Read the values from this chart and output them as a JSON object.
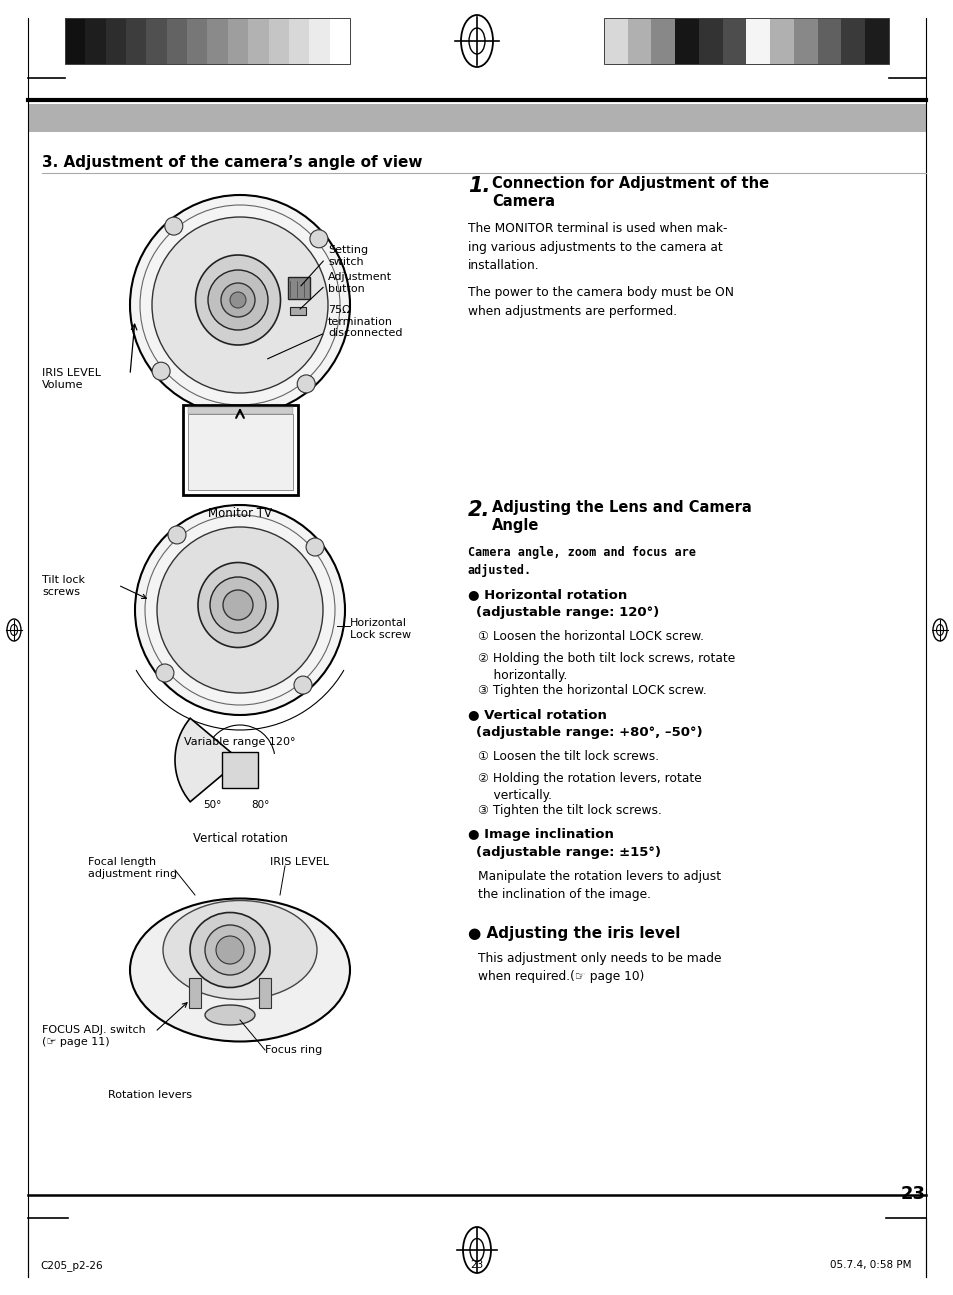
{
  "bg_color": "#ffffff",
  "colors_left": [
    "#111111",
    "#1e1e1e",
    "#2d2d2d",
    "#3d3d3d",
    "#505050",
    "#636363",
    "#777777",
    "#8a8a8a",
    "#9e9e9e",
    "#b2b2b2",
    "#c5c5c5",
    "#d8d8d8",
    "#ebebeb",
    "#ffffff"
  ],
  "colors_right": [
    "#d8d8d8",
    "#b0b0b0",
    "#888888",
    "#161616",
    "#333333",
    "#4d4d4d",
    "#f5f5f5",
    "#b0b0b0",
    "#888888",
    "#606060",
    "#3a3a3a",
    "#1c1c1c"
  ],
  "section_title": "3. Adjustment of the camera’s angle of view",
  "footer_left": "C205_p2-26",
  "footer_center": "23",
  "footer_right": "05.7.4, 0:58 PM",
  "page_number": "23"
}
